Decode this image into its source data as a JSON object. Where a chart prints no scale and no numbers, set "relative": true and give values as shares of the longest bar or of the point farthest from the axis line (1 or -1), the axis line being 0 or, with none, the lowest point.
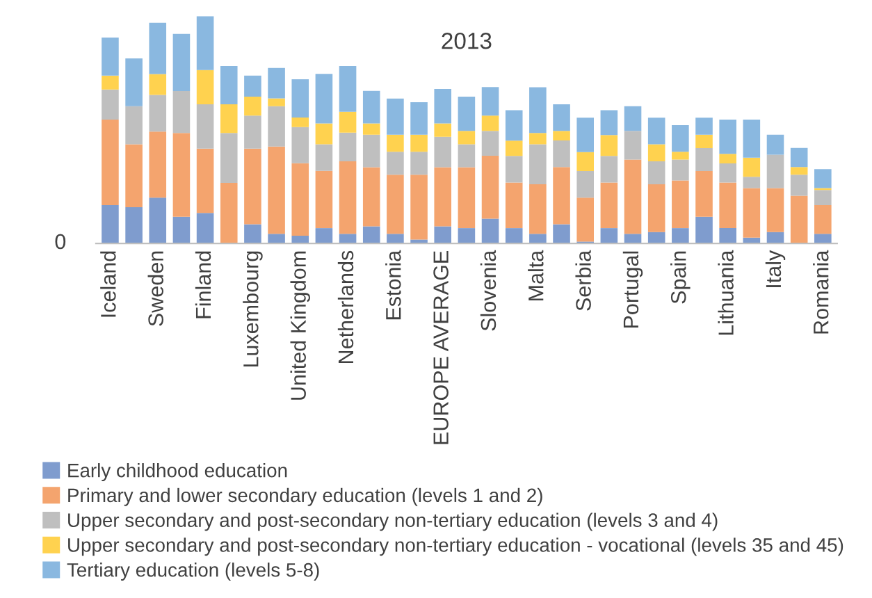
{
  "chart_data": {
    "type": "bar",
    "title": "2013",
    "stacked": true,
    "relative": true,
    "legend": "bottom",
    "grid": false,
    "categories": [
      "Iceland",
      null,
      "Sweden",
      null,
      "Finland",
      null,
      "Luxembourg",
      null,
      "United Kingdom",
      null,
      "Netherlands",
      null,
      "Estonia",
      null,
      "EUROPE AVERAGE",
      null,
      "Slovenia",
      null,
      "Malta",
      null,
      "Serbia",
      null,
      "Portugal",
      null,
      "Spain",
      null,
      "Lithuania",
      null,
      "Italy",
      null,
      "Romania"
    ],
    "annotations": [
      "0"
    ],
    "series": [
      {
        "name": "Early childhood education",
        "color": "#7f9cce",
        "values": [
          0.168,
          0.159,
          0.201,
          0.117,
          0.134,
          0,
          0.084,
          0.042,
          0.034,
          0.067,
          0.042,
          0.075,
          0.042,
          0.017,
          0.075,
          0.067,
          0.109,
          0.067,
          0.042,
          0.084,
          0.008,
          0.067,
          0.042,
          0.05,
          0.067,
          0.117,
          0.067,
          0.025,
          0.05,
          0,
          0.042
        ]
      },
      {
        "name": "Primary and lower secondary education (levels 1 and 2)",
        "color": "#f4a46e",
        "values": [
          0.377,
          0.277,
          0.291,
          0.369,
          0.283,
          0.266,
          0.333,
          0.384,
          0.319,
          0.252,
          0.319,
          0.26,
          0.26,
          0.285,
          0.26,
          0.268,
          0.277,
          0.201,
          0.218,
          0.252,
          0.193,
          0.201,
          0.327,
          0.21,
          0.21,
          0.201,
          0.201,
          0.218,
          0.193,
          0.21,
          0.126
        ]
      },
      {
        "name": "Upper secondary and post-secondary non-tertiary education (levels 3 and 4)",
        "color": "#bfbfbf",
        "values": [
          0.132,
          0.168,
          0.161,
          0.184,
          0.195,
          0.22,
          0.145,
          0.178,
          0.159,
          0.117,
          0.126,
          0.143,
          0.101,
          0.101,
          0.134,
          0.101,
          0.109,
          0.117,
          0.176,
          0.117,
          0.117,
          0.117,
          0.126,
          0.101,
          0.092,
          0.101,
          0.084,
          0.05,
          0.147,
          0.092,
          0.067
        ]
      },
      {
        "name": "Upper secondary and post-secondary non-tertiary education - vocational (levels 35 and 45)",
        "color": "#ffd24f",
        "values": [
          0.061,
          0,
          0.092,
          0,
          0.151,
          0.126,
          0.084,
          0.034,
          0.042,
          0.092,
          0.092,
          0.05,
          0.075,
          0.075,
          0.059,
          0.059,
          0.067,
          0.067,
          0.05,
          0.042,
          0.084,
          0.092,
          0,
          0.075,
          0.034,
          0.059,
          0.042,
          0.084,
          0,
          0.034,
          0.008
        ]
      },
      {
        "name": "Tertiary education (levels 5-8)",
        "color": "#8ab8e0",
        "values": [
          0.168,
          0.21,
          0.226,
          0.252,
          0.237,
          0.168,
          0.092,
          0.134,
          0.168,
          0.218,
          0.201,
          0.143,
          0.159,
          0.143,
          0.151,
          0.151,
          0.126,
          0.134,
          0.201,
          0.117,
          0.151,
          0.109,
          0.109,
          0.117,
          0.117,
          0.075,
          0.151,
          0.168,
          0.088,
          0.084,
          0.084
        ]
      }
    ]
  }
}
